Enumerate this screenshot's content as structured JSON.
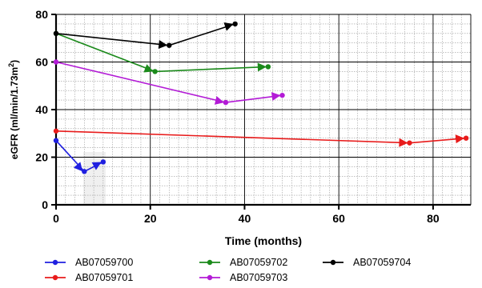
{
  "chart_data": {
    "type": "line",
    "title": "",
    "xlabel": "Time (months)",
    "ylabel": {
      "prefix": "eGFR (ml/min/1.73m",
      "sup": "2",
      "suffix": ")"
    },
    "xlim": [
      0,
      88
    ],
    "ylim": [
      0,
      80
    ],
    "x_ticks": [
      0,
      20,
      40,
      60,
      80
    ],
    "y_ticks": [
      0,
      20,
      40,
      60,
      80
    ],
    "x_minor_step": 2,
    "y_minor_step": 4,
    "grid": true,
    "legend_position": "bottom",
    "series": [
      {
        "name": "AB07059700",
        "color": "#1f1fe0",
        "x": [
          0,
          6,
          10
        ],
        "y": [
          27,
          14,
          18
        ],
        "arrows_at": [
          1,
          2
        ]
      },
      {
        "name": "AB07059701",
        "color": "#e81b1b",
        "x": [
          0,
          75,
          87
        ],
        "y": [
          31,
          26,
          28
        ],
        "arrows_at": [
          1,
          2
        ]
      },
      {
        "name": "AB07059702",
        "color": "#1b8a1b",
        "x": [
          0,
          21,
          45
        ],
        "y": [
          72,
          56,
          58
        ],
        "arrows_at": [
          1,
          2
        ]
      },
      {
        "name": "AB07059703",
        "color": "#b31bd6",
        "x": [
          0,
          36,
          48
        ],
        "y": [
          60,
          43,
          46
        ],
        "arrows_at": [
          1,
          2
        ]
      },
      {
        "name": "AB07059704",
        "color": "#000000",
        "x": [
          0,
          24,
          38
        ],
        "y": [
          72,
          67,
          76
        ],
        "arrows_at": [
          1,
          2
        ]
      }
    ]
  }
}
